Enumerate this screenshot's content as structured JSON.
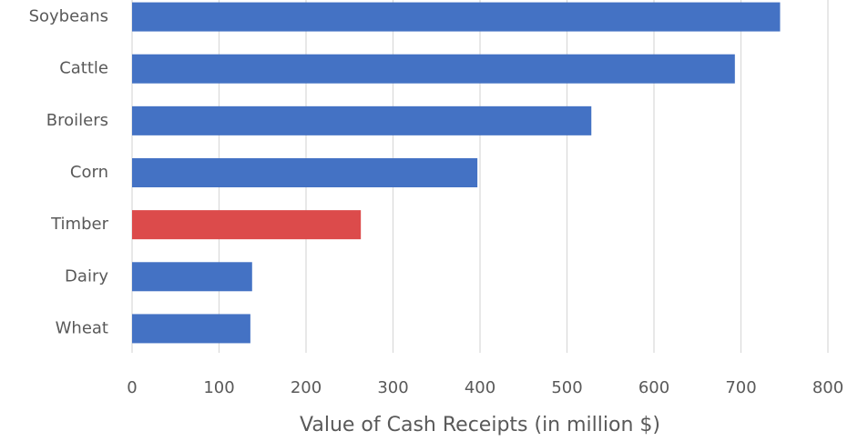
{
  "chart_data": {
    "type": "bar",
    "orientation": "horizontal",
    "x_label": "Value of Cash Receipts (in million $)",
    "categories": [
      "Soybeans",
      "Cattle",
      "Broilers",
      "Corn",
      "Timber",
      "Dairy",
      "Wheat"
    ],
    "values": [
      745,
      693,
      528,
      397,
      263,
      138,
      136
    ],
    "colors": [
      "#4472c4",
      "#4472c4",
      "#4472c4",
      "#4472c4",
      "#dc4b4b",
      "#4472c4",
      "#4472c4"
    ],
    "xlim": [
      0,
      800
    ],
    "xticks": [
      0,
      100,
      200,
      300,
      400,
      500,
      600,
      700,
      800
    ],
    "grid": true
  }
}
